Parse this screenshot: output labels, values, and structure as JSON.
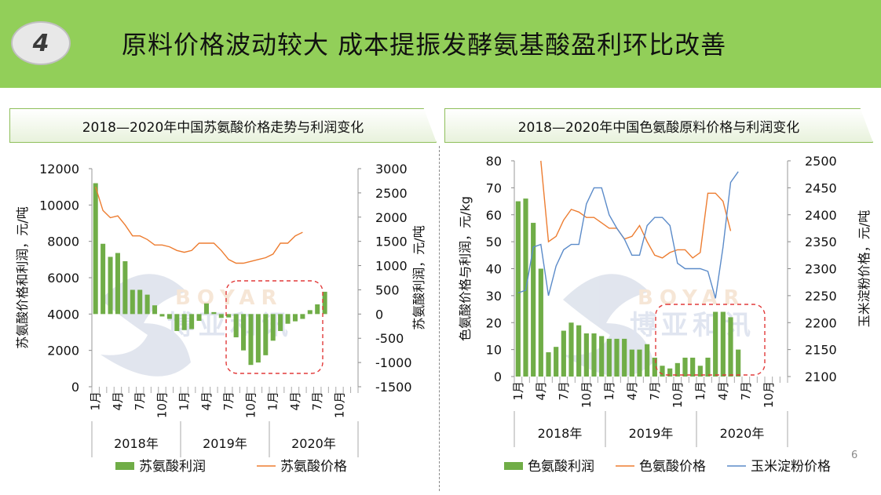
{
  "header": {
    "badge_number": "4",
    "title": "原料价格波动较大 成本提振发酵氨基酸盈利环比改善"
  },
  "page_number": "6",
  "colors": {
    "header_bg": "#92cf59",
    "bar": "#70ad47",
    "orange": "#ed7d31",
    "blue": "#5b8bc9",
    "highlight_box": "#e23a3a"
  },
  "watermark": {
    "latin": "BOYAR",
    "chinese": "博亚和讯"
  },
  "chart_data": [
    {
      "type": "bar+line",
      "title": "2018—2020年中国苏氨酸价格走势与利润变化",
      "ylabel_left": "苏氨酸价格和利润，元/吨",
      "ylabel_right": "苏氨酸利润，元/吨",
      "ylim_left": [
        0,
        12000
      ],
      "yticks_left": [
        "0",
        "2000",
        "4000",
        "6000",
        "8000",
        "10000",
        "12000"
      ],
      "ylim_right": [
        -1500,
        3000
      ],
      "yticks_right": [
        "-1500",
        "-1000",
        "-500",
        "0",
        "500",
        "1000",
        "1500",
        "2000",
        "2500",
        "3000"
      ],
      "month_labels": [
        "1月",
        "4月",
        "7月",
        "10月",
        "1月",
        "4月",
        "7月",
        "10月",
        "1月",
        "4月",
        "7月",
        "10月"
      ],
      "year_labels": [
        "2018年",
        "2019年",
        "2020年"
      ],
      "n_months": 36,
      "series": [
        {
          "name": "苏氨酸利润",
          "kind": "bar",
          "axis": "right",
          "values": [
            2700,
            1450,
            1180,
            1260,
            1090,
            500,
            500,
            400,
            180,
            -50,
            -100,
            -350,
            -330,
            -310,
            -140,
            220,
            40,
            -80,
            -70,
            -480,
            -750,
            -1050,
            -1000,
            -850,
            -550,
            -350,
            -200,
            -150,
            -100,
            80,
            200,
            460,
            null,
            null,
            null,
            null
          ]
        },
        {
          "name": "苏氨酸价格",
          "kind": "line",
          "axis": "left",
          "values": [
            11000,
            9700,
            9300,
            9400,
            8900,
            8300,
            8300,
            8100,
            7800,
            7800,
            7700,
            7500,
            7400,
            7500,
            7900,
            7900,
            7900,
            7500,
            7000,
            6800,
            6800,
            6900,
            7000,
            7100,
            7300,
            7900,
            7900,
            8300,
            8500,
            null,
            null,
            null,
            null,
            null,
            null,
            null
          ]
        }
      ]
    },
    {
      "type": "bar+line",
      "title": "2018—2020年中国色氨酸原料价格与利润变化",
      "ylabel_left": "色氨酸价格与利润，元/kg",
      "ylabel_right": "玉米淀粉价格，元/吨",
      "ylim_left": [
        0,
        80
      ],
      "yticks_left": [
        "0",
        "10",
        "20",
        "30",
        "40",
        "50",
        "60",
        "70",
        "80"
      ],
      "ylim_right": [
        2100,
        2500
      ],
      "yticks_right": [
        "2100",
        "2150",
        "2200",
        "2250",
        "2300",
        "2350",
        "2400",
        "2450",
        "2500"
      ],
      "month_labels": [
        "1月",
        "4月",
        "7月",
        "10月",
        "1月",
        "4月",
        "7月",
        "10月",
        "1月",
        "4月",
        "7月",
        "10月"
      ],
      "year_labels": [
        "2018年",
        "2019年",
        "2020年"
      ],
      "n_months": 36,
      "series": [
        {
          "name": "色氨酸利润",
          "kind": "bar",
          "axis": "left",
          "values": [
            65,
            66,
            57,
            40,
            9,
            11,
            17,
            20,
            19,
            16,
            16,
            15,
            14,
            14,
            14,
            10,
            10,
            12,
            7,
            4,
            3,
            5,
            7,
            7,
            4,
            7,
            24,
            24,
            22,
            10,
            null,
            null,
            null,
            null,
            null,
            null
          ]
        },
        {
          "name": "色氨酸价格",
          "kind": "line",
          "axis": "left",
          "values": [
            null,
            null,
            null,
            80,
            50,
            52,
            58,
            62,
            61,
            59,
            59,
            57,
            55,
            55,
            51,
            52,
            56,
            50,
            45,
            44,
            46,
            47,
            47,
            44,
            46,
            68,
            68,
            65,
            54,
            null,
            null,
            null,
            null,
            null,
            null,
            null
          ]
        },
        {
          "name": "玉米淀粉价格",
          "kind": "line",
          "axis": "right",
          "values": [
            2255,
            2260,
            2340,
            2345,
            2250,
            2305,
            2335,
            2345,
            2345,
            2420,
            2450,
            2450,
            2400,
            2375,
            2355,
            2325,
            2325,
            2380,
            2395,
            2395,
            2380,
            2310,
            2300,
            2300,
            2300,
            2295,
            2245,
            2340,
            2460,
            2480,
            null,
            null,
            null,
            null,
            null,
            null
          ]
        }
      ]
    }
  ]
}
